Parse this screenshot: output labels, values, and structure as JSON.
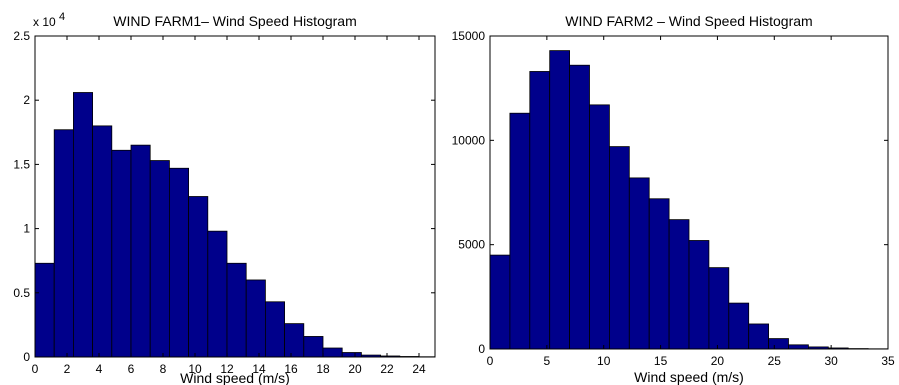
{
  "chart_data": [
    {
      "type": "bar",
      "title": "WIND FARM1– Wind Speed Histogram",
      "xlabel": "Wind speed (m/s)",
      "ylabel": "",
      "y_exponent_label": "x 10",
      "y_exponent_power": "4",
      "bin_width": 1.2,
      "bin_start": 0,
      "values": [
        7300,
        17700,
        20600,
        18000,
        16100,
        16500,
        15300,
        14700,
        12500,
        9800,
        7300,
        6000,
        4300,
        2600,
        1600,
        700,
        350,
        150,
        80,
        40,
        20
      ],
      "xlim": [
        0,
        25
      ],
      "ylim": [
        0,
        25000
      ],
      "xticks": [
        0,
        2,
        4,
        6,
        8,
        10,
        12,
        14,
        16,
        18,
        20,
        22,
        24
      ],
      "yticks": [
        0,
        5000,
        10000,
        15000,
        20000,
        25000
      ],
      "ytick_labels": [
        "0",
        "0.5",
        "1",
        "1.5",
        "2",
        "2.5"
      ],
      "bar_color": "#00008b"
    },
    {
      "type": "bar",
      "title": "WIND FARM2 – Wind Speed Histogram",
      "xlabel": "Wind speed (m/s)",
      "ylabel": "",
      "bin_width": 1.75,
      "bin_start": 0,
      "values": [
        4500,
        11300,
        13300,
        14300,
        13600,
        11700,
        9700,
        8200,
        7200,
        6200,
        5200,
        3900,
        2200,
        1200,
        500,
        200,
        100,
        50,
        20,
        10
      ],
      "xlim": [
        0,
        35
      ],
      "ylim": [
        0,
        15000
      ],
      "xticks": [
        0,
        5,
        10,
        15,
        20,
        25,
        30,
        35
      ],
      "yticks": [
        0,
        5000,
        10000,
        15000
      ],
      "ytick_labels": [
        "0",
        "5000",
        "10000",
        "15000"
      ],
      "bar_color": "#00008b"
    }
  ]
}
